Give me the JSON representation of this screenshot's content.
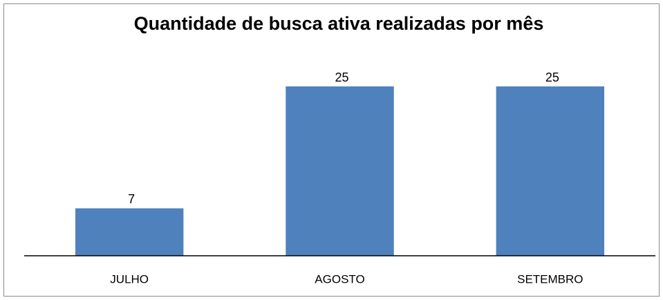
{
  "chart_data": {
    "type": "bar",
    "title": "Quantidade de busca ativa realizadas por mês",
    "categories": [
      "JULHO",
      "AGOSTO",
      "SETEMBRO"
    ],
    "values": [
      7,
      25,
      25
    ],
    "color": "#4f81bd"
  }
}
